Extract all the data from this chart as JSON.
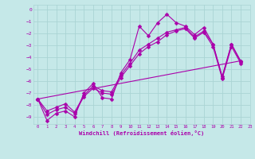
{
  "xlabel": "Windchill (Refroidissement éolien,°C)",
  "xlim": [
    -0.5,
    23
  ],
  "ylim": [
    -9.6,
    0.4
  ],
  "xticks": [
    0,
    1,
    2,
    3,
    4,
    5,
    6,
    7,
    8,
    9,
    10,
    11,
    12,
    13,
    14,
    15,
    16,
    17,
    18,
    19,
    20,
    21,
    22,
    23
  ],
  "yticks": [
    0,
    -1,
    -2,
    -3,
    -4,
    -5,
    -6,
    -7,
    -8,
    -9
  ],
  "bg_color": "#c5e8e8",
  "grid_color": "#aad4d4",
  "line_color": "#aa00aa",
  "markersize": 2.5,
  "line1_x": [
    0,
    1,
    2,
    3,
    4,
    5,
    6,
    7,
    8,
    9,
    10,
    11,
    12,
    13,
    14,
    15,
    16,
    17,
    18,
    19,
    20,
    21,
    22
  ],
  "line1_y": [
    -7.5,
    -9.3,
    -8.7,
    -8.5,
    -9.0,
    -7.0,
    -6.2,
    -7.4,
    -7.5,
    -5.3,
    -4.2,
    -1.4,
    -2.2,
    -1.1,
    -0.4,
    -1.1,
    -1.4,
    -2.1,
    -1.5,
    -2.9,
    -5.7,
    -2.9,
    -4.3
  ],
  "line2_x": [
    0,
    1,
    2,
    3,
    4,
    5,
    6,
    7,
    8,
    9,
    10,
    11,
    12,
    13,
    14,
    15,
    16,
    17,
    18,
    19,
    20,
    21,
    22
  ],
  "line2_y": [
    -7.5,
    -8.8,
    -8.4,
    -8.2,
    -8.7,
    -7.3,
    -6.6,
    -7.0,
    -7.1,
    -5.7,
    -4.7,
    -3.7,
    -3.1,
    -2.7,
    -2.1,
    -1.8,
    -1.6,
    -2.4,
    -1.9,
    -3.1,
    -5.8,
    -3.1,
    -4.5
  ],
  "line3_x": [
    0,
    1,
    2,
    3,
    4,
    5,
    6,
    7,
    8,
    9,
    10,
    11,
    12,
    13,
    14,
    15,
    16,
    17,
    18,
    19,
    20,
    21,
    22
  ],
  "line3_y": [
    -7.5,
    -8.5,
    -8.2,
    -7.9,
    -8.6,
    -7.2,
    -6.4,
    -6.8,
    -6.9,
    -5.5,
    -4.5,
    -3.4,
    -2.9,
    -2.4,
    -1.9,
    -1.7,
    -1.5,
    -2.3,
    -1.8,
    -2.9,
    -5.6,
    -2.9,
    -4.4
  ],
  "line4_x": [
    0,
    22
  ],
  "line4_y": [
    -7.5,
    -4.3
  ]
}
